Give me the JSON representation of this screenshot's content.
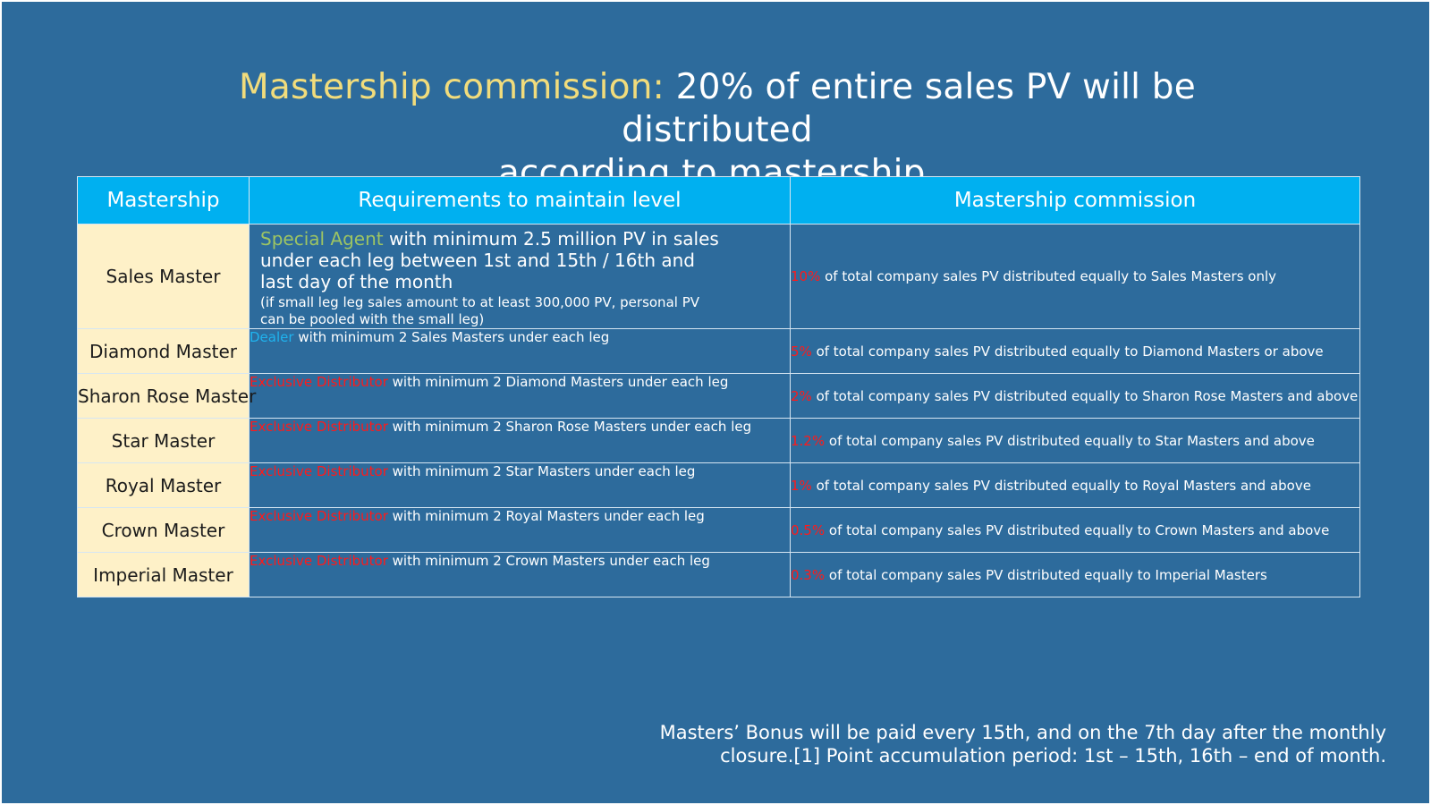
{
  "title": {
    "highlight": "Mastership commission:",
    "line1_rest": "20% of entire sales PV will be distributed",
    "line2": "according to mastership."
  },
  "table": {
    "headers": [
      "Mastership",
      "Requirements to maintain level",
      "Mastership commission"
    ],
    "rows": [
      {
        "name": "Sales Master",
        "req_role": "Special Agent",
        "req_main": "with minimum 2.5 million PV in sales under each leg between 1st and 15th / 16th and last day of the month",
        "req_note": "(if small leg leg sales amount to at least 300,000 PV, personal PV can be pooled with the small leg)",
        "pct": "10%",
        "commission": "of total company sales PV distributed equally to Sales Masters only"
      },
      {
        "name": "Diamond Master",
        "req_role": "Dealer",
        "req_text": "with minimum 2 Sales Masters under each leg",
        "pct": "5%",
        "commission": "of total company sales PV distributed equally to Diamond Masters or above"
      },
      {
        "name": "Sharon Rose Master",
        "req_role": "Exclusive Distributor",
        "req_text": "with minimum 2 Diamond Masters under each leg",
        "pct": "2%",
        "commission": "of total company sales PV distributed equally to Sharon Rose Masters and above"
      },
      {
        "name": "Star Master",
        "req_role": "Exclusive Distributor",
        "req_text": "with minimum 2 Sharon Rose Masters under each leg",
        "pct": "1.2%",
        "commission": "of total company sales PV distributed equally to Star Masters and above"
      },
      {
        "name": "Royal Master",
        "req_role": "Exclusive Distributor",
        "req_text": "with minimum 2 Star Masters under each leg",
        "pct": "1%",
        "commission": "of total company sales PV distributed equally to Royal Masters and above"
      },
      {
        "name": "Crown Master",
        "req_role": "Exclusive Distributor",
        "req_text": "with minimum 2 Royal Masters under each leg",
        "pct": "0.5%",
        "commission": "of total company sales PV distributed equally to Crown Masters and above"
      },
      {
        "name": "Imperial Master",
        "req_role": "Exclusive Distributor",
        "req_text": "with minimum 2 Crown Masters under each leg",
        "pct": "0.3%",
        "commission": "of total company sales PV distributed equally to Imperial Masters"
      }
    ]
  },
  "footer": {
    "line1": "Masters’ Bonus will be paid every 15th, and on the 7th day after the monthly closure.[1] Point accumulation period: 1st – 15th, 16th – end of month."
  },
  "colors": {
    "background": "#2d6b9c",
    "header": "#00b0f0",
    "name_cell": "#fef1c8",
    "title_highlight": "#f1dc7c",
    "percent": "#ff1a1a",
    "special_agent": "#9dc463",
    "dealer": "#1fb3ee"
  }
}
